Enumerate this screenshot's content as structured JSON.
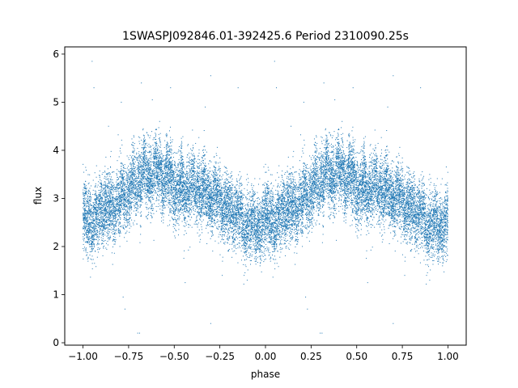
{
  "chart_data": {
    "type": "scatter",
    "title": "1SWASPJ092846.01-392425.6 Period 2310090.25s",
    "xlabel": "phase",
    "ylabel": "flux",
    "xlim": [
      -1.1,
      1.1
    ],
    "ylim": [
      -0.05,
      6.15
    ],
    "grid": false,
    "marker_color": "#1f77b4",
    "x_ticks": [
      {
        "value": -1.0,
        "label": "−1.00"
      },
      {
        "value": -0.75,
        "label": "−0.75"
      },
      {
        "value": -0.5,
        "label": "−0.50"
      },
      {
        "value": -0.25,
        "label": "−0.25"
      },
      {
        "value": 0.0,
        "label": "0.00"
      },
      {
        "value": 0.25,
        "label": "0.25"
      },
      {
        "value": 0.5,
        "label": "0.50"
      },
      {
        "value": 0.75,
        "label": "0.75"
      },
      {
        "value": 1.0,
        "label": "1.00"
      }
    ],
    "y_ticks": [
      {
        "value": 0,
        "label": "0"
      },
      {
        "value": 1,
        "label": "1"
      },
      {
        "value": 2,
        "label": "2"
      },
      {
        "value": 3,
        "label": "3"
      },
      {
        "value": 4,
        "label": "4"
      },
      {
        "value": 5,
        "label": "5"
      },
      {
        "value": 6,
        "label": "6"
      }
    ],
    "trend": [
      [
        0.0,
        2.55
      ],
      [
        0.03,
        2.5
      ],
      [
        0.06,
        2.55
      ],
      [
        0.09,
        2.65
      ],
      [
        0.12,
        2.8
      ],
      [
        0.15,
        2.7
      ],
      [
        0.18,
        2.9
      ],
      [
        0.21,
        3.0
      ],
      [
        0.24,
        3.1
      ],
      [
        0.27,
        3.25
      ],
      [
        0.3,
        3.35
      ],
      [
        0.33,
        3.55
      ],
      [
        0.36,
        3.4
      ],
      [
        0.39,
        3.55
      ],
      [
        0.42,
        3.55
      ],
      [
        0.45,
        3.45
      ],
      [
        0.48,
        3.4
      ],
      [
        0.51,
        3.1
      ],
      [
        0.54,
        3.25
      ],
      [
        0.57,
        3.15
      ],
      [
        0.6,
        3.25
      ],
      [
        0.63,
        3.2
      ],
      [
        0.66,
        3.15
      ],
      [
        0.69,
        3.05
      ],
      [
        0.72,
        3.0
      ],
      [
        0.75,
        2.95
      ],
      [
        0.78,
        2.75
      ],
      [
        0.81,
        2.75
      ],
      [
        0.84,
        2.7
      ],
      [
        0.87,
        2.5
      ],
      [
        0.9,
        2.45
      ],
      [
        0.93,
        2.5
      ],
      [
        0.96,
        2.4
      ],
      [
        0.99,
        2.4
      ],
      [
        1.0,
        2.55
      ]
    ],
    "spread_sd": 0.35,
    "points_per_cycle": 9000,
    "outliers": [
      [
        -0.95,
        5.85
      ],
      [
        -0.94,
        5.3
      ],
      [
        -0.79,
        5.0
      ],
      [
        -0.78,
        0.95
      ],
      [
        -0.77,
        0.7
      ],
      [
        -0.7,
        0.2
      ],
      [
        -0.69,
        0.2
      ],
      [
        -0.68,
        5.4
      ],
      [
        -0.62,
        5.05
      ],
      [
        -0.52,
        5.3
      ],
      [
        -0.44,
        1.25
      ],
      [
        -0.3,
        5.55
      ],
      [
        -0.3,
        0.4
      ],
      [
        -0.15,
        5.3
      ],
      [
        -0.1,
        1.3
      ],
      [
        0.05,
        5.85
      ],
      [
        0.06,
        5.3
      ],
      [
        0.21,
        5.0
      ],
      [
        0.22,
        0.95
      ],
      [
        0.23,
        0.7
      ],
      [
        0.3,
        0.2
      ],
      [
        0.31,
        0.2
      ],
      [
        0.32,
        5.4
      ],
      [
        0.38,
        5.05
      ],
      [
        0.48,
        5.3
      ],
      [
        0.56,
        1.25
      ],
      [
        0.7,
        5.55
      ],
      [
        0.7,
        0.4
      ],
      [
        0.85,
        5.3
      ],
      [
        0.9,
        1.3
      ],
      [
        -0.33,
        4.9
      ],
      [
        0.67,
        4.9
      ],
      [
        -0.58,
        4.6
      ],
      [
        0.42,
        4.6
      ],
      [
        -0.86,
        4.5
      ],
      [
        0.14,
        4.5
      ]
    ]
  }
}
